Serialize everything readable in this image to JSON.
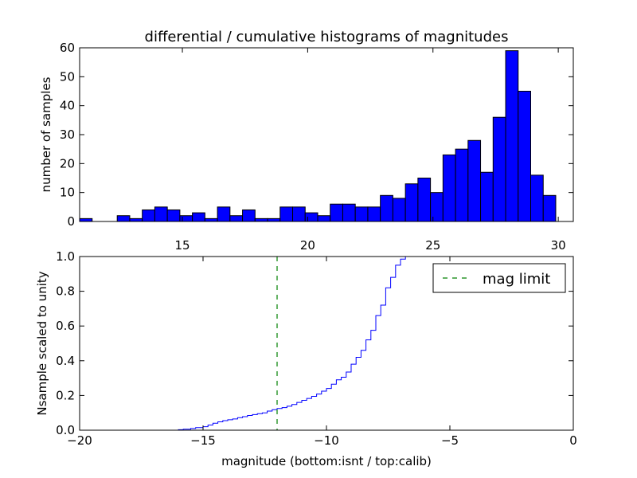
{
  "chart_data": [
    {
      "type": "bar",
      "title": "differential / cumulative histograms of magnitudes",
      "xlabel": "",
      "ylabel": "number of samples",
      "xlim": [
        10.9,
        30.6
      ],
      "ylim": [
        0,
        60
      ],
      "xticks": [
        "15",
        "20",
        "25",
        "30"
      ],
      "yticks": [
        "0",
        "10",
        "20",
        "30",
        "40",
        "50",
        "60"
      ],
      "x_axis_position": "top",
      "bar_color": "#0000ff",
      "edge_color": "#000000",
      "bin_start": 10.9,
      "bin_width": 0.5,
      "values": [
        1,
        0,
        0,
        2,
        1,
        4,
        5,
        4,
        2,
        3,
        1,
        5,
        2,
        4,
        1,
        1,
        5,
        5,
        3,
        2,
        6,
        6,
        5,
        5,
        9,
        8,
        13,
        15,
        10,
        23,
        25,
        28,
        17,
        36,
        59,
        45,
        16,
        9
      ]
    },
    {
      "type": "line",
      "title": "",
      "xlabel": "magnitude (bottom:isnt / top:calib)",
      "ylabel": "Nsample scaled to unity",
      "xlim": [
        -20,
        0
      ],
      "ylim": [
        0,
        1.0
      ],
      "xticks": [
        "−20",
        "−15",
        "−10",
        "−5",
        "0"
      ],
      "yticks": [
        "0.0",
        "0.2",
        "0.4",
        "0.6",
        "0.8",
        "1.0"
      ],
      "grid": false,
      "legend": {
        "position": "top-right",
        "entries": [
          "mag limit"
        ]
      },
      "series": [
        {
          "style": "step",
          "color": "#0000ff",
          "x": [
            -20.0,
            -16.0,
            -15.8,
            -15.5,
            -15.3,
            -15.0,
            -14.8,
            -14.6,
            -14.4,
            -14.2,
            -14.0,
            -13.8,
            -13.6,
            -13.4,
            -13.2,
            -13.0,
            -12.8,
            -12.6,
            -12.4,
            -12.2,
            -12.0,
            -11.8,
            -11.6,
            -11.4,
            -11.2,
            -11.0,
            -10.8,
            -10.6,
            -10.4,
            -10.2,
            -10.0,
            -9.8,
            -9.6,
            -9.4,
            -9.2,
            -9.0,
            -8.8,
            -8.6,
            -8.4,
            -8.2,
            -8.0,
            -7.8,
            -7.6,
            -7.4,
            -7.2,
            -7.0,
            -6.8,
            -6.0
          ],
          "y": [
            0.0,
            0.003,
            0.006,
            0.01,
            0.015,
            0.02,
            0.03,
            0.04,
            0.048,
            0.055,
            0.06,
            0.065,
            0.072,
            0.078,
            0.085,
            0.09,
            0.095,
            0.1,
            0.11,
            0.118,
            0.125,
            0.13,
            0.138,
            0.148,
            0.16,
            0.172,
            0.183,
            0.195,
            0.208,
            0.225,
            0.24,
            0.265,
            0.29,
            0.305,
            0.335,
            0.38,
            0.42,
            0.46,
            0.52,
            0.575,
            0.66,
            0.72,
            0.82,
            0.88,
            0.95,
            0.985,
            1.0,
            1.0
          ]
        },
        {
          "name": "mag limit",
          "style": "vline-dashed",
          "color": "#008000",
          "x": -12.0
        }
      ]
    }
  ]
}
